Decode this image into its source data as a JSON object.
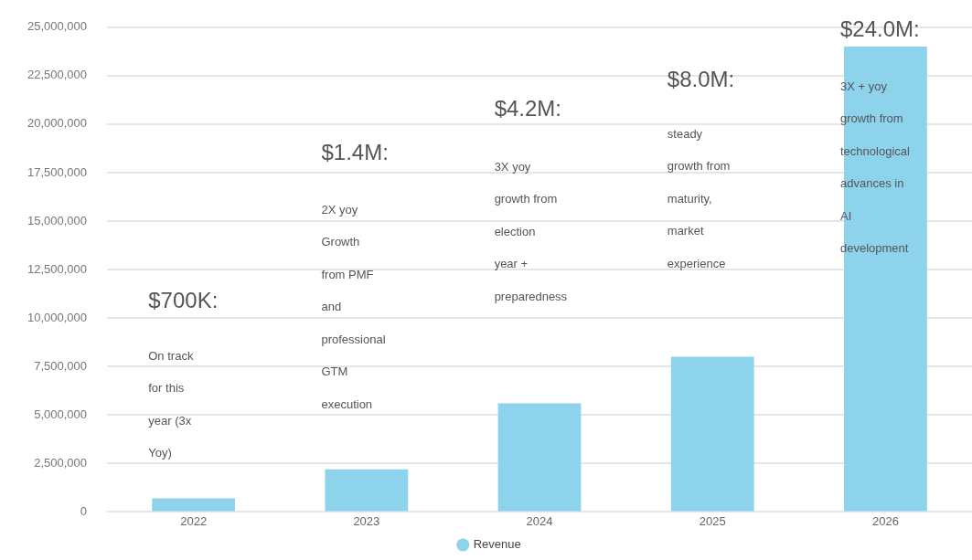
{
  "chart_data": {
    "type": "bar",
    "categories": [
      "2022",
      "2023",
      "2024",
      "2025",
      "2026"
    ],
    "series": [
      {
        "name": "Revenue",
        "color": "#8dd3ec",
        "values": [
          700000,
          2200000,
          5600000,
          8000000,
          24000000
        ]
      }
    ],
    "ylim": [
      0,
      25000000
    ],
    "yticks": [
      {
        "value": 0,
        "label": "0"
      },
      {
        "value": 2500000,
        "label": "2,500,000"
      },
      {
        "value": 5000000,
        "label": "5,000,000"
      },
      {
        "value": 7500000,
        "label": "7,500,000"
      },
      {
        "value": 10000000,
        "label": "10,000,000"
      },
      {
        "value": 12500000,
        "label": "12,500,000"
      },
      {
        "value": 15000000,
        "label": "15,000,000"
      },
      {
        "value": 17500000,
        "label": "17,500,000"
      },
      {
        "value": 20000000,
        "label": "20,000,000"
      },
      {
        "value": 22500000,
        "label": "22,500,000"
      },
      {
        "value": 25000000,
        "label": "25,000,000"
      }
    ],
    "grid": "y",
    "legend": "bottom",
    "marker": "circle",
    "annotations": [
      "$700K:",
      "On track for this year (3x Yoy)",
      "$1.4M:",
      "2X yoy Growth from PMF and professional GTM execution",
      "$4.2M:",
      "3X yoy growth from election year + preparedness",
      "$8.0M:",
      "steady growth from maturity, market experience",
      "$24.0M:",
      "3X + yoy growth from technological advances in AI development"
    ]
  }
}
